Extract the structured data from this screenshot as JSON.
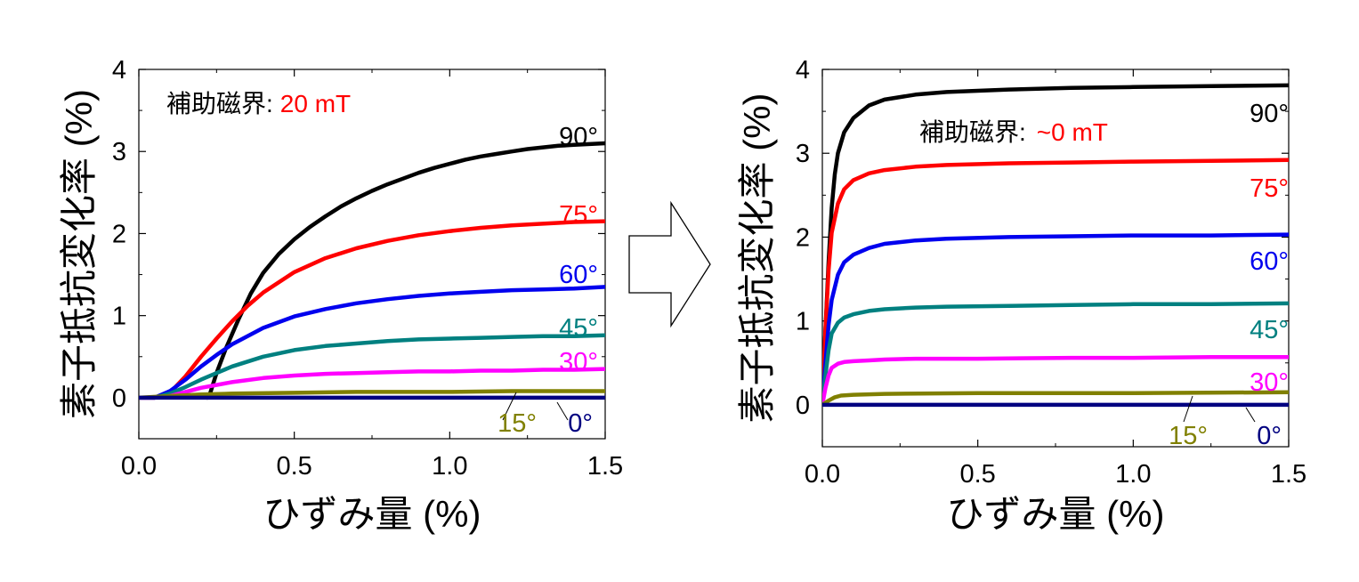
{
  "chart_data": [
    {
      "type": "line",
      "xlabel": "ひずみ量 (%)",
      "ylabel": "素子抵抗変化率 (%)",
      "xlim": [
        0.0,
        1.5
      ],
      "ylim": [
        -0.5,
        4.0
      ],
      "xticks": [
        "0.0",
        "0.5",
        "1.0",
        "1.5"
      ],
      "yticks": [
        "0",
        "1",
        "2",
        "3",
        "4"
      ],
      "annotation": {
        "label": "補助磁界:",
        "value": "20 mT",
        "value_color": "#ff0000"
      },
      "series": [
        {
          "name": "90°",
          "color": "#000000",
          "x": [
            0.22,
            0.23,
            0.25,
            0.28,
            0.32,
            0.36,
            0.4,
            0.45,
            0.5,
            0.55,
            0.6,
            0.65,
            0.7,
            0.75,
            0.8,
            0.85,
            0.9,
            0.95,
            1.0,
            1.05,
            1.1,
            1.15,
            1.2,
            1.25,
            1.3,
            1.35,
            1.4,
            1.45,
            1.5
          ],
          "y": [
            0.0,
            0.06,
            0.3,
            0.6,
            0.95,
            1.27,
            1.52,
            1.75,
            1.93,
            2.08,
            2.21,
            2.33,
            2.43,
            2.52,
            2.6,
            2.67,
            2.74,
            2.8,
            2.85,
            2.9,
            2.94,
            2.97,
            3.0,
            3.03,
            3.05,
            3.07,
            3.08,
            3.09,
            3.1
          ]
        },
        {
          "name": "75°",
          "color": "#ff0000",
          "x": [
            0.0,
            0.05,
            0.1,
            0.15,
            0.2,
            0.25,
            0.3,
            0.35,
            0.4,
            0.5,
            0.6,
            0.7,
            0.8,
            0.9,
            1.0,
            1.1,
            1.2,
            1.3,
            1.4,
            1.5
          ],
          "y": [
            0.0,
            0.0,
            0.06,
            0.26,
            0.5,
            0.72,
            0.93,
            1.12,
            1.28,
            1.53,
            1.7,
            1.82,
            1.91,
            1.98,
            2.03,
            2.07,
            2.1,
            2.12,
            2.14,
            2.15
          ]
        },
        {
          "name": "60°",
          "color": "#0000ee",
          "x": [
            0.0,
            0.05,
            0.1,
            0.15,
            0.2,
            0.25,
            0.3,
            0.4,
            0.5,
            0.6,
            0.7,
            0.8,
            0.9,
            1.0,
            1.1,
            1.2,
            1.3,
            1.4,
            1.5
          ],
          "y": [
            0.0,
            0.0,
            0.08,
            0.22,
            0.38,
            0.52,
            0.65,
            0.85,
            0.99,
            1.08,
            1.15,
            1.2,
            1.24,
            1.27,
            1.29,
            1.31,
            1.32,
            1.33,
            1.35
          ]
        },
        {
          "name": "45°",
          "color": "#008080",
          "x": [
            0.0,
            0.05,
            0.1,
            0.15,
            0.2,
            0.25,
            0.3,
            0.4,
            0.5,
            0.6,
            0.7,
            0.8,
            0.9,
            1.0,
            1.1,
            1.2,
            1.3,
            1.4,
            1.5
          ],
          "y": [
            0.0,
            0.0,
            0.05,
            0.13,
            0.22,
            0.3,
            0.38,
            0.5,
            0.58,
            0.63,
            0.66,
            0.69,
            0.71,
            0.72,
            0.73,
            0.74,
            0.75,
            0.75,
            0.76
          ]
        },
        {
          "name": "30°",
          "color": "#ff00ff",
          "x": [
            0.0,
            0.05,
            0.1,
            0.15,
            0.2,
            0.3,
            0.4,
            0.5,
            0.6,
            0.7,
            0.8,
            0.9,
            1.0,
            1.1,
            1.2,
            1.3,
            1.4,
            1.5
          ],
          "y": [
            0.0,
            0.0,
            0.02,
            0.07,
            0.12,
            0.19,
            0.24,
            0.27,
            0.29,
            0.3,
            0.31,
            0.32,
            0.32,
            0.33,
            0.33,
            0.34,
            0.34,
            0.35
          ]
        },
        {
          "name": "15°",
          "color": "#808000",
          "x": [
            0.0,
            0.1,
            0.2,
            0.3,
            0.5,
            0.7,
            1.0,
            1.2,
            1.5
          ],
          "y": [
            0.0,
            0.02,
            0.04,
            0.05,
            0.06,
            0.07,
            0.07,
            0.08,
            0.08
          ]
        },
        {
          "name": "0°",
          "color": "#000080",
          "x": [
            0.0,
            1.5
          ],
          "y": [
            0.0,
            0.0
          ]
        }
      ]
    },
    {
      "type": "line",
      "xlabel": "ひずみ量 (%)",
      "ylabel": "素子抵抗変化率 (%)",
      "xlim": [
        0.0,
        1.5
      ],
      "ylim": [
        -0.5,
        4.0
      ],
      "xticks": [
        "0.0",
        "0.5",
        "1.0",
        "1.5"
      ],
      "yticks": [
        "0",
        "1",
        "2",
        "3",
        "4"
      ],
      "annotation": {
        "label": "補助磁界:",
        "value": "~0 mT",
        "value_color": "#ff0000"
      },
      "series": [
        {
          "name": "90°",
          "color": "#000000",
          "x": [
            0.0,
            0.01,
            0.02,
            0.03,
            0.04,
            0.05,
            0.07,
            0.1,
            0.15,
            0.2,
            0.3,
            0.4,
            0.6,
            0.8,
            1.0,
            1.25,
            1.5
          ],
          "y": [
            0.0,
            0.9,
            1.7,
            2.35,
            2.75,
            3.0,
            3.25,
            3.42,
            3.57,
            3.64,
            3.7,
            3.73,
            3.76,
            3.78,
            3.79,
            3.8,
            3.81
          ]
        },
        {
          "name": "75°",
          "color": "#ff0000",
          "x": [
            0.0,
            0.01,
            0.02,
            0.03,
            0.05,
            0.07,
            0.1,
            0.15,
            0.2,
            0.3,
            0.4,
            0.6,
            0.8,
            1.0,
            1.25,
            1.5
          ],
          "y": [
            0.0,
            0.9,
            1.6,
            2.05,
            2.4,
            2.57,
            2.68,
            2.76,
            2.8,
            2.84,
            2.86,
            2.88,
            2.89,
            2.9,
            2.91,
            2.92
          ]
        },
        {
          "name": "60°",
          "color": "#0000ee",
          "x": [
            0.0,
            0.01,
            0.02,
            0.03,
            0.05,
            0.07,
            0.1,
            0.15,
            0.2,
            0.3,
            0.4,
            0.6,
            0.8,
            1.0,
            1.25,
            1.5
          ],
          "y": [
            0.0,
            0.5,
            0.95,
            1.25,
            1.55,
            1.7,
            1.79,
            1.87,
            1.92,
            1.96,
            1.98,
            2.0,
            2.01,
            2.02,
            2.02,
            2.03
          ]
        },
        {
          "name": "45°",
          "color": "#008080",
          "x": [
            0.0,
            0.01,
            0.02,
            0.03,
            0.05,
            0.07,
            0.1,
            0.15,
            0.2,
            0.3,
            0.4,
            0.6,
            0.8,
            1.0,
            1.25,
            1.5
          ],
          "y": [
            0.0,
            0.35,
            0.65,
            0.85,
            0.98,
            1.04,
            1.08,
            1.12,
            1.14,
            1.16,
            1.17,
            1.18,
            1.19,
            1.2,
            1.2,
            1.21
          ]
        },
        {
          "name": "30°",
          "color": "#ff00ff",
          "x": [
            0.0,
            0.01,
            0.02,
            0.03,
            0.05,
            0.07,
            0.1,
            0.15,
            0.2,
            0.3,
            0.5,
            0.8,
            1.0,
            1.25,
            1.5
          ],
          "y": [
            0.0,
            0.2,
            0.35,
            0.44,
            0.49,
            0.51,
            0.52,
            0.53,
            0.54,
            0.55,
            0.55,
            0.56,
            0.56,
            0.57,
            0.57
          ]
        },
        {
          "name": "15°",
          "color": "#808000",
          "x": [
            0.0,
            0.02,
            0.04,
            0.06,
            0.1,
            0.2,
            0.5,
            1.0,
            1.5
          ],
          "y": [
            0.0,
            0.05,
            0.09,
            0.11,
            0.12,
            0.13,
            0.14,
            0.14,
            0.15
          ]
        },
        {
          "name": "0°",
          "color": "#000080",
          "x": [
            0.0,
            1.5
          ],
          "y": [
            0.0,
            0.0
          ]
        }
      ]
    }
  ]
}
